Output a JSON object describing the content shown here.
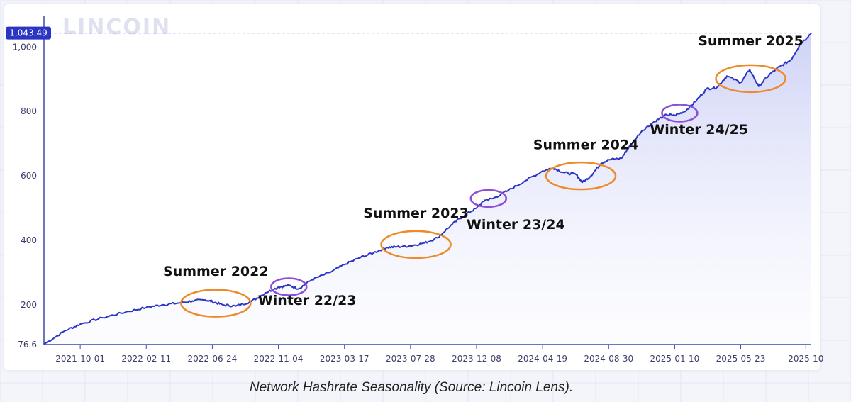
{
  "caption": "Network Hashrate Seasonality (Source: Lincoin Lens).",
  "watermark": "LINCOIN",
  "chart_data": {
    "type": "area",
    "title": "",
    "xlabel": "",
    "ylabel": "",
    "ylim": [
      76.6,
      1080
    ],
    "xlim": [
      "2021-07-20",
      "2025-10-12"
    ],
    "current_value_label": "1,043.49",
    "y_ticks": [
      {
        "value": 76.6,
        "label": "76.6"
      },
      {
        "value": 200,
        "label": "200"
      },
      {
        "value": 400,
        "label": "400"
      },
      {
        "value": 600,
        "label": "600"
      },
      {
        "value": 800,
        "label": "800"
      },
      {
        "value": 1000,
        "label": "1,000"
      }
    ],
    "x_ticks": [
      "2021-10-01",
      "2022-02-11",
      "2022-06-24",
      "2022-11-04",
      "2023-03-17",
      "2023-07-28",
      "2023-12-08",
      "2024-04-19",
      "2024-08-30",
      "2025-01-10",
      "2025-05-23",
      "2025-10"
    ],
    "series": [
      {
        "color": "#2b35c4",
        "points": [
          [
            "2021-07-20",
            78
          ],
          [
            "2021-09-01",
            120
          ],
          [
            "2021-10-01",
            140
          ],
          [
            "2021-11-15",
            160
          ],
          [
            "2022-01-01",
            178
          ],
          [
            "2022-02-11",
            192
          ],
          [
            "2022-03-15",
            200
          ],
          [
            "2022-04-15",
            205
          ],
          [
            "2022-05-15",
            212
          ],
          [
            "2022-06-10",
            215
          ],
          [
            "2022-06-24",
            210
          ],
          [
            "2022-07-15",
            200
          ],
          [
            "2022-08-10",
            196
          ],
          [
            "2022-09-10",
            210
          ],
          [
            "2022-10-10",
            238
          ],
          [
            "2022-11-04",
            255
          ],
          [
            "2022-11-25",
            260
          ],
          [
            "2022-12-15",
            250
          ],
          [
            "2023-01-10",
            278
          ],
          [
            "2023-02-15",
            300
          ],
          [
            "2023-03-17",
            325
          ],
          [
            "2023-04-15",
            345
          ],
          [
            "2023-05-15",
            362
          ],
          [
            "2023-06-10",
            378
          ],
          [
            "2023-07-01",
            380
          ],
          [
            "2023-07-28",
            383
          ],
          [
            "2023-08-25",
            392
          ],
          [
            "2023-09-20",
            408
          ],
          [
            "2023-10-20",
            450
          ],
          [
            "2023-11-15",
            480
          ],
          [
            "2023-12-08",
            500
          ],
          [
            "2023-12-25",
            525
          ],
          [
            "2024-01-10",
            530
          ],
          [
            "2024-02-10",
            555
          ],
          [
            "2024-03-15",
            585
          ],
          [
            "2024-04-19",
            615
          ],
          [
            "2024-05-10",
            625
          ],
          [
            "2024-06-01",
            610
          ],
          [
            "2024-06-25",
            605
          ],
          [
            "2024-07-08",
            580
          ],
          [
            "2024-07-25",
            600
          ],
          [
            "2024-08-15",
            640
          ],
          [
            "2024-08-30",
            650
          ],
          [
            "2024-09-25",
            655
          ],
          [
            "2024-10-10",
            690
          ],
          [
            "2024-11-05",
            740
          ],
          [
            "2024-12-01",
            770
          ],
          [
            "2024-12-25",
            790
          ],
          [
            "2025-01-10",
            788
          ],
          [
            "2025-01-30",
            800
          ],
          [
            "2025-02-20",
            830
          ],
          [
            "2025-03-15",
            870
          ],
          [
            "2025-04-05",
            875
          ],
          [
            "2025-04-25",
            910
          ],
          [
            "2025-05-23",
            890
          ],
          [
            "2025-06-10",
            930
          ],
          [
            "2025-06-28",
            878
          ],
          [
            "2025-07-20",
            915
          ],
          [
            "2025-08-10",
            940
          ],
          [
            "2025-09-01",
            960
          ],
          [
            "2025-09-20",
            1010
          ],
          [
            "2025-10-12",
            1043.49
          ]
        ]
      }
    ],
    "annotations": [
      {
        "label": "Summer 2022",
        "center": [
          "2022-07-01",
          205
        ],
        "label_anchor": [
          "2022-07-01",
          290
        ],
        "kind": "summer"
      },
      {
        "label": "Winter 22/23",
        "center": [
          "2022-11-25",
          256
        ],
        "label_anchor": [
          "2023-01-01",
          200
        ],
        "kind": "winter"
      },
      {
        "label": "Summer 2023",
        "center": [
          "2023-08-08",
          387
        ],
        "label_anchor": [
          "2023-08-08",
          470
        ],
        "kind": "summer"
      },
      {
        "label": "Winter 23/24",
        "center": [
          "2024-01-01",
          530
        ],
        "label_anchor": [
          "2024-02-25",
          435
        ],
        "kind": "winter"
      },
      {
        "label": "Summer 2024",
        "center": [
          "2024-07-05",
          600
        ],
        "label_anchor": [
          "2024-07-15",
          683
        ],
        "kind": "summer"
      },
      {
        "label": "Winter 24/25",
        "center": [
          "2025-01-20",
          795
        ],
        "label_anchor": [
          "2025-02-28",
          730
        ],
        "kind": "winter"
      },
      {
        "label": "Summer 2025",
        "center": [
          "2025-06-12",
          902
        ],
        "label_anchor": [
          "2025-06-12",
          1005
        ],
        "kind": "summer"
      }
    ],
    "colors": {
      "line": "#2b35c4",
      "area_top": "#c9cdf6",
      "summer_ring": "#ef8a2b",
      "winter_ring": "#8c4fd9",
      "badge": "#2b35c4"
    }
  }
}
